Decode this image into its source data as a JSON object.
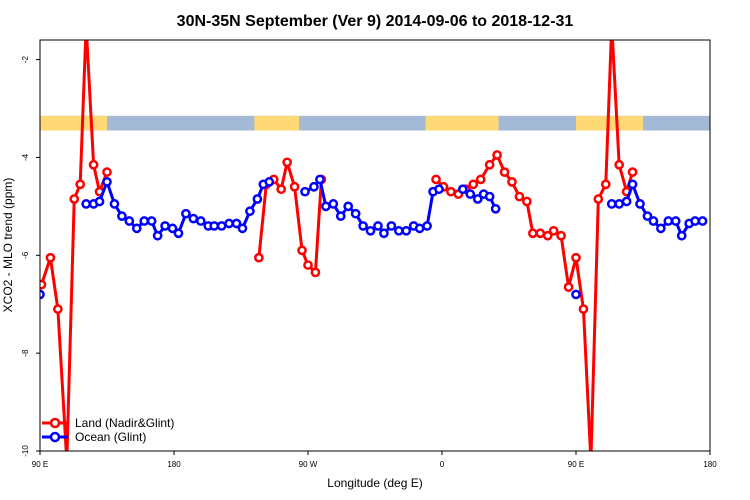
{
  "chart_data": {
    "type": "line",
    "title": "30N-35N September (Ver 9)   2014-09-06 to 2018-12-31",
    "xlabel": "Longitude (deg E)",
    "ylabel": "XCO2 - MLO trend (ppm)",
    "xlim": [
      90,
      540
    ],
    "ylim": [
      -10,
      -1.6
    ],
    "x_ticks": [
      {
        "value": 90,
        "label": "90 E"
      },
      {
        "value": 180,
        "label": "180"
      },
      {
        "value": 270,
        "label": "90 W"
      },
      {
        "value": 360,
        "label": "0"
      },
      {
        "value": 450,
        "label": "90 E"
      },
      {
        "value": 540,
        "label": "180"
      }
    ],
    "y_ticks": [
      {
        "value": -2,
        "label": "-2"
      },
      {
        "value": -4,
        "label": "-4"
      },
      {
        "value": -6,
        "label": "-6"
      },
      {
        "value": -8,
        "label": "-8"
      },
      {
        "value": -10,
        "label": "-10"
      }
    ],
    "land_mask_band": {
      "y_range": [
        -3.15,
        -3.45
      ],
      "ocean_color": "#a3b9d6",
      "land_color": "#ffd976",
      "land_segments": [
        [
          90,
          135
        ],
        [
          234,
          264
        ],
        [
          349,
          398
        ],
        [
          450,
          495
        ],
        [
          540,
          540
        ]
      ]
    },
    "legend": {
      "position": "bottom-left"
    },
    "series": [
      {
        "name": "Land (Nadir&Glint)",
        "color": "#ff0000",
        "segments": [
          [
            [
              91,
              -6.6
            ],
            [
              97,
              -6.05
            ],
            [
              102,
              -7.1
            ],
            [
              108,
              -10.2
            ],
            [
              113,
              -4.85
            ],
            [
              117,
              -4.55
            ],
            [
              121,
              -1.3
            ],
            [
              126,
              -4.15
            ],
            [
              130,
              -4.7
            ],
            [
              135,
              -4.3
            ]
          ],
          [
            [
              237,
              -6.05
            ],
            [
              242,
              -4.55
            ],
            [
              247,
              -4.45
            ],
            [
              252,
              -4.65
            ],
            [
              256,
              -4.1
            ],
            [
              261,
              -4.6
            ],
            [
              266,
              -5.9
            ],
            [
              270,
              -6.2
            ],
            [
              275,
              -6.35
            ],
            [
              279,
              -4.45
            ]
          ],
          [
            [
              356,
              -4.45
            ],
            [
              361,
              -4.6
            ],
            [
              366,
              -4.7
            ],
            [
              371,
              -4.75
            ],
            [
              376,
              -4.65
            ],
            [
              381,
              -4.55
            ],
            [
              386,
              -4.45
            ],
            [
              392,
              -4.15
            ],
            [
              397,
              -3.95
            ],
            [
              402,
              -4.3
            ],
            [
              407,
              -4.5
            ],
            [
              412,
              -4.8
            ],
            [
              417,
              -4.9
            ],
            [
              421,
              -5.55
            ],
            [
              426,
              -5.55
            ],
            [
              431,
              -5.6
            ],
            [
              435,
              -5.5
            ],
            [
              440,
              -5.6
            ],
            [
              445,
              -6.65
            ],
            [
              450,
              -6.05
            ],
            [
              455,
              -7.1
            ],
            [
              460,
              -10.2
            ],
            [
              465,
              -4.85
            ],
            [
              470,
              -4.55
            ],
            [
              474,
              -1.3
            ],
            [
              479,
              -4.15
            ],
            [
              484,
              -4.7
            ],
            [
              488,
              -4.3
            ]
          ]
        ]
      },
      {
        "name": "Ocean (Glint)",
        "color": "#0000ff",
        "segments": [
          [
            [
              90,
              -6.8
            ]
          ],
          [
            [
              121,
              -4.95
            ],
            [
              126,
              -4.95
            ],
            [
              130,
              -4.9
            ],
            [
              135,
              -4.5
            ],
            [
              140,
              -4.95
            ],
            [
              145,
              -5.2
            ],
            [
              150,
              -5.3
            ],
            [
              155,
              -5.45
            ],
            [
              160,
              -5.3
            ],
            [
              165,
              -5.3
            ],
            [
              169,
              -5.6
            ],
            [
              174,
              -5.4
            ],
            [
              179,
              -5.45
            ],
            [
              183,
              -5.55
            ],
            [
              188,
              -5.15
            ],
            [
              193,
              -5.25
            ],
            [
              198,
              -5.3
            ],
            [
              203,
              -5.4
            ],
            [
              207,
              -5.4
            ],
            [
              212,
              -5.4
            ],
            [
              217,
              -5.35
            ],
            [
              222,
              -5.35
            ],
            [
              226,
              -5.45
            ],
            [
              231,
              -5.1
            ],
            [
              236,
              -4.85
            ],
            [
              240,
              -4.55
            ],
            [
              244,
              -4.5
            ]
          ],
          [
            [
              268,
              -4.7
            ],
            [
              274,
              -4.6
            ],
            [
              278,
              -4.45
            ],
            [
              282,
              -5.0
            ],
            [
              287,
              -4.95
            ],
            [
              292,
              -5.2
            ],
            [
              297,
              -5.0
            ],
            [
              302,
              -5.15
            ],
            [
              307,
              -5.4
            ],
            [
              312,
              -5.5
            ],
            [
              317,
              -5.4
            ],
            [
              321,
              -5.55
            ],
            [
              326,
              -5.4
            ],
            [
              331,
              -5.5
            ],
            [
              336,
              -5.5
            ],
            [
              341,
              -5.4
            ],
            [
              345,
              -5.45
            ],
            [
              350,
              -5.4
            ],
            [
              354,
              -4.7
            ],
            [
              358,
              -4.65
            ]
          ],
          [
            [
              374,
              -4.65
            ],
            [
              379,
              -4.75
            ],
            [
              384,
              -4.85
            ],
            [
              388,
              -4.75
            ],
            [
              392,
              -4.8
            ],
            [
              396,
              -5.05
            ]
          ],
          [
            [
              450,
              -6.8
            ]
          ],
          [
            [
              474,
              -4.95
            ],
            [
              479,
              -4.95
            ],
            [
              484,
              -4.9
            ],
            [
              488,
              -4.55
            ],
            [
              493,
              -4.95
            ],
            [
              498,
              -5.2
            ],
            [
              502,
              -5.3
            ],
            [
              507,
              -5.45
            ],
            [
              512,
              -5.3
            ],
            [
              517,
              -5.3
            ],
            [
              521,
              -5.6
            ],
            [
              526,
              -5.35
            ],
            [
              530,
              -5.3
            ],
            [
              535,
              -5.3
            ]
          ]
        ]
      }
    ]
  }
}
